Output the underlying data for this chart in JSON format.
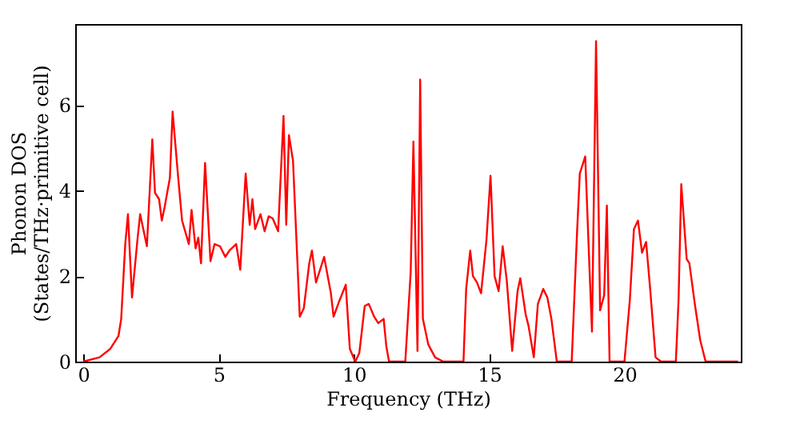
{
  "chart_data": {
    "type": "line",
    "xlabel": "Frequency (THz)",
    "ylabel": [
      "Phonon DOS",
      "(States/THz·primitive cell)"
    ],
    "x": [
      0,
      0.6,
      1.0,
      1.3,
      1.4,
      1.55,
      1.65,
      1.8,
      2.0,
      2.1,
      2.25,
      2.35,
      2.55,
      2.65,
      2.8,
      2.9,
      3.0,
      3.2,
      3.3,
      3.5,
      3.65,
      3.9,
      4.0,
      4.15,
      4.25,
      4.35,
      4.5,
      4.7,
      4.85,
      5.05,
      5.25,
      5.4,
      5.65,
      5.8,
      6.0,
      6.15,
      6.25,
      6.35,
      6.55,
      6.7,
      6.85,
      7.0,
      7.2,
      7.4,
      7.5,
      7.6,
      7.75,
      8.0,
      8.15,
      8.35,
      8.45,
      8.6,
      8.8,
      8.9,
      9.15,
      9.25,
      9.45,
      9.7,
      9.85,
      10.05,
      10.2,
      10.4,
      10.55,
      10.75,
      10.9,
      11.1,
      11.2,
      11.3,
      11.9,
      12.1,
      12.2,
      12.35,
      12.45,
      12.55,
      12.75,
      13.0,
      13.3,
      14.05,
      14.15,
      14.3,
      14.4,
      14.55,
      14.7,
      14.9,
      15.05,
      15.2,
      15.35,
      15.5,
      15.65,
      15.85,
      16.05,
      16.15,
      16.35,
      16.45,
      16.65,
      16.8,
      17.0,
      17.15,
      17.3,
      17.5,
      18.05,
      18.25,
      18.35,
      18.55,
      18.7,
      18.8,
      18.95,
      19.1,
      19.25,
      19.35,
      19.45,
      20.0,
      20.2,
      20.35,
      20.5,
      20.65,
      20.8,
      20.95,
      21.15,
      21.35,
      21.9,
      22.0,
      22.1,
      22.3,
      22.4,
      22.6,
      22.8,
      23.0,
      24.2
    ],
    "series": [
      {
        "color": "#ff0000",
        "values": [
          0,
          0.1,
          0.3,
          0.6,
          1.0,
          2.75,
          3.45,
          1.5,
          2.85,
          3.45,
          3.0,
          2.7,
          5.2,
          3.95,
          3.8,
          3.3,
          3.6,
          4.3,
          5.85,
          4.35,
          3.3,
          2.75,
          3.55,
          2.65,
          2.9,
          2.3,
          4.65,
          2.35,
          2.75,
          2.7,
          2.45,
          2.6,
          2.75,
          2.15,
          4.4,
          3.2,
          3.8,
          3.1,
          3.45,
          3.05,
          3.4,
          3.35,
          3.05,
          5.75,
          3.2,
          5.3,
          4.7,
          1.05,
          1.25,
          2.3,
          2.6,
          1.85,
          2.25,
          2.45,
          1.6,
          1.05,
          1.4,
          1.8,
          0.3,
          0,
          0.2,
          1.3,
          1.35,
          1.05,
          0.9,
          1.0,
          0.35,
          0,
          0,
          2.1,
          5.15,
          0.25,
          6.6,
          1.0,
          0.4,
          0.1,
          0,
          0,
          1.7,
          2.6,
          2.0,
          1.85,
          1.6,
          2.85,
          4.35,
          2.0,
          1.65,
          2.7,
          1.9,
          0.25,
          1.65,
          1.95,
          1.1,
          0.85,
          0.1,
          1.35,
          1.7,
          1.5,
          1.0,
          0,
          0,
          3.05,
          4.4,
          4.8,
          2.3,
          0.7,
          7.5,
          1.2,
          1.55,
          3.65,
          0,
          0,
          1.45,
          3.1,
          3.3,
          2.55,
          2.8,
          1.7,
          0.1,
          0,
          0,
          1.45,
          4.15,
          2.4,
          2.3,
          1.35,
          0.5,
          0,
          0
        ]
      }
    ],
    "xlim": [
      -0.3,
      24.3
    ],
    "ylim": [
      0,
      7.9
    ],
    "xticks": [
      0,
      5,
      10,
      15,
      20
    ],
    "yticks": [
      0,
      2,
      4,
      6
    ],
    "grid": false,
    "marker": "none",
    "line_style": "solid"
  }
}
